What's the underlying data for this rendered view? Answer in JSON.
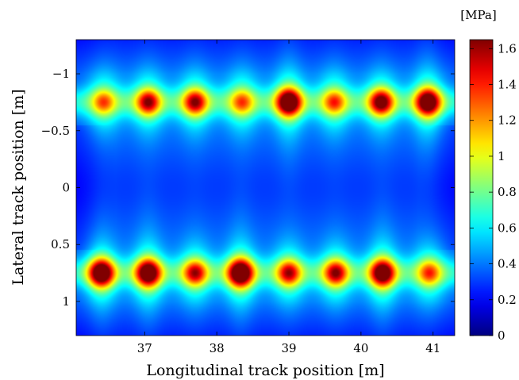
{
  "chart_data": {
    "type": "heatmap",
    "title": "",
    "xlabel": "Longitudinal track position [m]",
    "ylabel": "Lateral track position [m]",
    "colorbar_label": "[MPa]",
    "colormap": "jet",
    "xlim": [
      36.05,
      41.3
    ],
    "ylim": [
      1.3,
      -1.3
    ],
    "y_axis_inverted": true,
    "clim": [
      0,
      1.65
    ],
    "xticks": [
      37,
      38,
      39,
      40,
      41
    ],
    "xtick_labels": [
      "37",
      "38",
      "39",
      "40",
      "41"
    ],
    "yticks": [
      -1,
      -0.5,
      0,
      0.5,
      1
    ],
    "ytick_labels": [
      "−1",
      "−0.5",
      "0",
      "0.5",
      "1"
    ],
    "colorbar_ticks": [
      0,
      0.2,
      0.4,
      0.6,
      0.8,
      1,
      1.2,
      1.4,
      1.6
    ],
    "colorbar_tick_labels": [
      "0",
      "0.2",
      "0.4",
      "0.6",
      "0.8",
      "1",
      "1.2",
      "1.4",
      "1.6"
    ],
    "background_level": 0.38,
    "peak_rows": [
      {
        "lateral_position": -0.75,
        "peaks": [
          {
            "x": 36.43,
            "value": 0.95
          },
          {
            "x": 37.05,
            "value": 1.25
          },
          {
            "x": 37.7,
            "value": 1.25
          },
          {
            "x": 38.35,
            "value": 0.95
          },
          {
            "x": 39.0,
            "value": 1.6
          },
          {
            "x": 39.63,
            "value": 1.0
          },
          {
            "x": 40.28,
            "value": 1.4
          },
          {
            "x": 40.93,
            "value": 1.55
          }
        ]
      },
      {
        "lateral_position": 0.75,
        "peaks": [
          {
            "x": 36.4,
            "value": 1.6
          },
          {
            "x": 37.05,
            "value": 1.55
          },
          {
            "x": 37.7,
            "value": 1.2
          },
          {
            "x": 38.33,
            "value": 1.65
          },
          {
            "x": 39.0,
            "value": 1.2
          },
          {
            "x": 39.65,
            "value": 1.25
          },
          {
            "x": 40.3,
            "value": 1.5
          },
          {
            "x": 40.95,
            "value": 1.0
          }
        ]
      }
    ]
  }
}
